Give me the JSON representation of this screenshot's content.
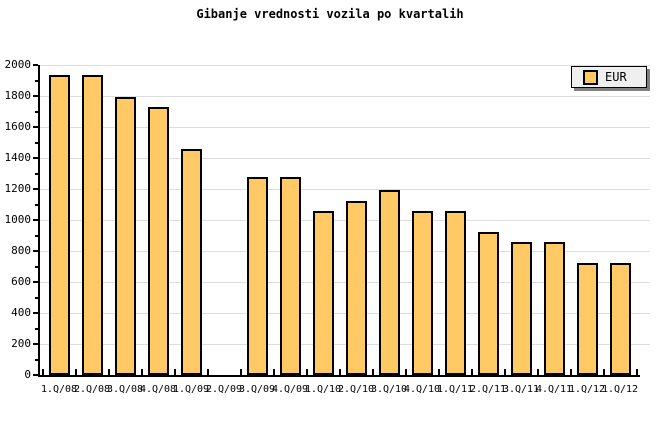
{
  "title": "Gibanje vrednosti vozila po kvartalih",
  "legend": {
    "label": "EUR"
  },
  "colors": {
    "bar_fill": "#FFC966",
    "bar_border": "#000000",
    "gridline": "#DDDDDD",
    "axis": "#000000",
    "legend_bg": "#EFEFEF",
    "legend_shadow": "#808080",
    "background": "#FFFFFF"
  },
  "chart_data": {
    "type": "bar",
    "title": "Gibanje vrednosti vozila po kvartalih",
    "categories": [
      "1.Q/08",
      "2.Q/08",
      "3.Q/08",
      "4.Q/08",
      "1.Q/09",
      "2.Q/09",
      "3.Q/09",
      "4.Q/09",
      "1.Q/10",
      "2.Q/10",
      "3.Q/10",
      "4.Q/10",
      "1.Q/11",
      "2.Q/11",
      "3.Q/11",
      "4.Q/11",
      "1.Q/12",
      "1.Q/12"
    ],
    "series": [
      {
        "name": "EUR",
        "values": [
          1935,
          1935,
          1795,
          1730,
          1460,
          null,
          1280,
          1280,
          1060,
          1125,
          1195,
          1060,
          1060,
          925,
          855,
          855,
          720,
          720
        ]
      }
    ],
    "note_missing_value_category": "2.Q/09",
    "xlabel": "",
    "ylabel": "",
    "ylim": [
      0,
      2000
    ],
    "ytick_major": 200,
    "ytick_minor": 100,
    "ytick_labels": [
      "0",
      "200",
      "400",
      "600",
      "800",
      "1000",
      "1200",
      "1400",
      "1600",
      "1800",
      "2000"
    ],
    "grid": "horizontal",
    "legend_position": "top-right"
  }
}
